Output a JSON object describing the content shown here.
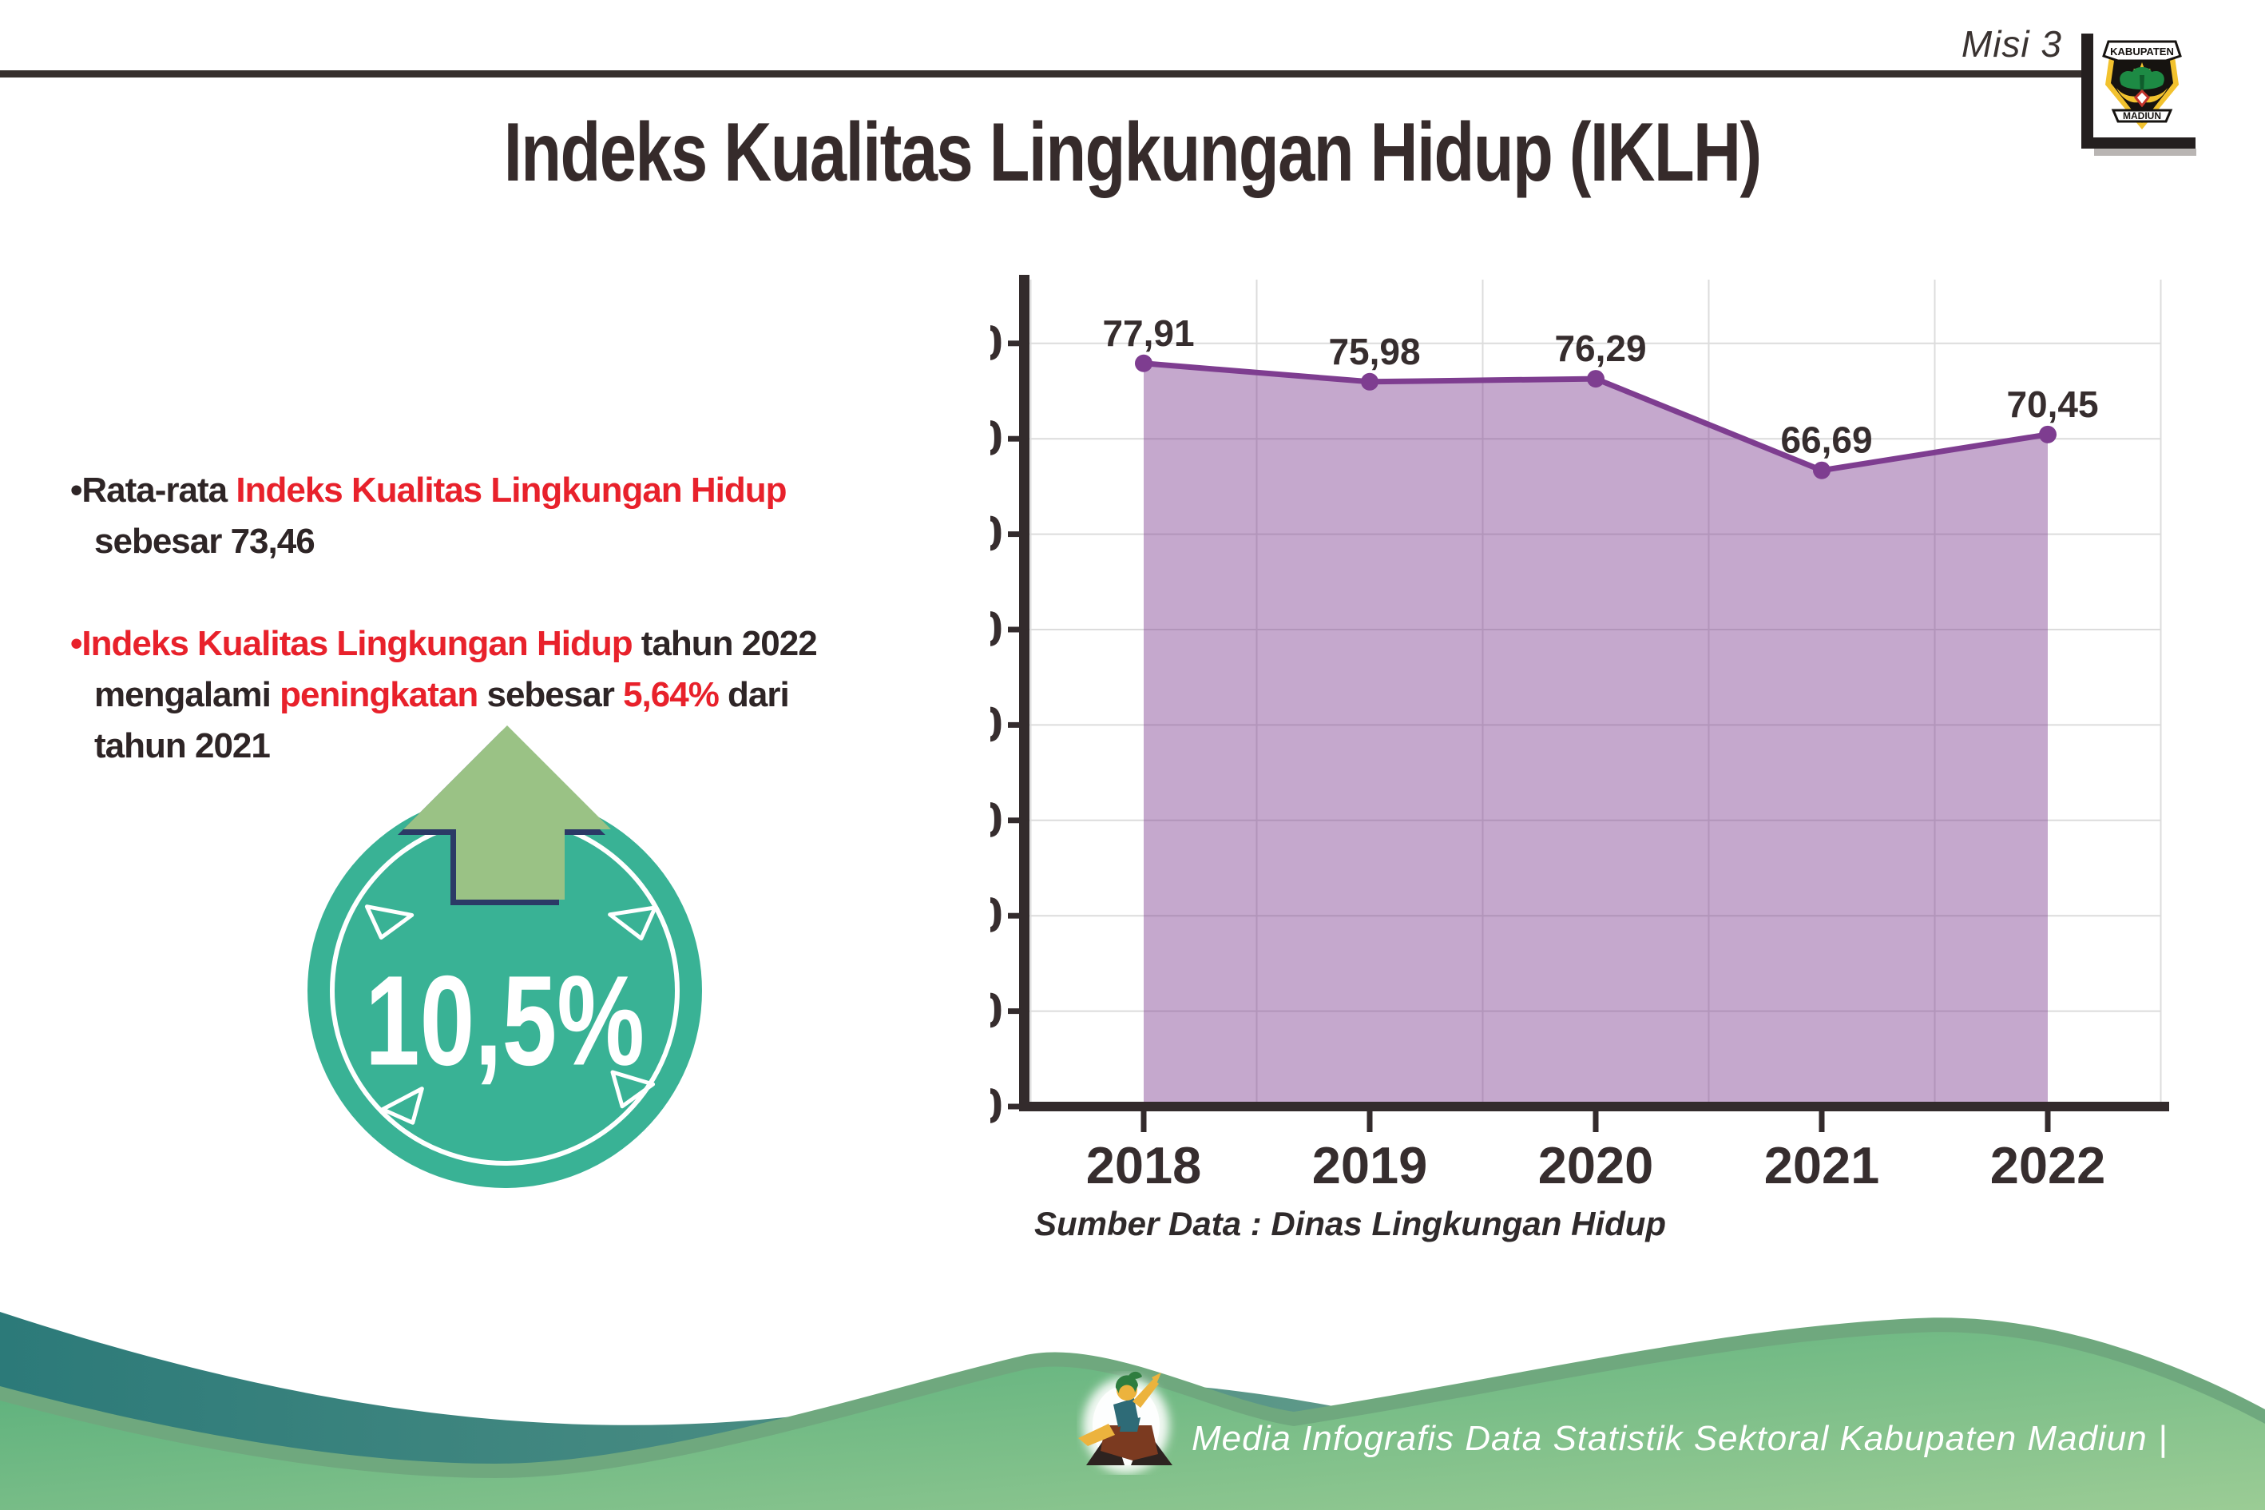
{
  "header": {
    "misi_label": "Misi 3",
    "crest_top": "KABUPATEN",
    "crest_bottom": "MADIUN"
  },
  "title": "Indeks Kualitas Lingkungan Hidup (IKLH)",
  "bullets": {
    "b1_s1": "•Rata-rata ",
    "b1_s2": "Indeks Kualitas Lingkungan Hidup",
    "b1_l2": "sebesar 73,46",
    "b2_s1": "•Indeks Kualitas Lingkungan Hidup",
    "b2_s2": " tahun 2022",
    "b2_l2_s1": "mengalami ",
    "b2_l2_s2": "peningkatan",
    "b2_l2_s3": " sebesar ",
    "b2_l2_s4": "5,64%",
    "b2_l2_s5": " dari",
    "b2_l3": "tahun 2021"
  },
  "badge": {
    "value": "10,5%",
    "circle_color": "#39b295",
    "arrow_color": "#9ac285",
    "arrow_outline": "#2b3a66"
  },
  "chart_data": {
    "type": "area",
    "categories": [
      "2018",
      "2019",
      "2020",
      "2021",
      "2022"
    ],
    "values": [
      77.91,
      75.98,
      76.29,
      66.69,
      70.45
    ],
    "value_labels": [
      "77,91",
      "75,98",
      "76,29",
      "66,69",
      "70,45"
    ],
    "title": "",
    "xlabel": "",
    "ylabel": "",
    "ylim": [
      0,
      85
    ],
    "ytick_step": 10,
    "grid": true,
    "legend": false,
    "source_note": "Sumber Data : Dinas Lingkungan Hidup",
    "colors": {
      "line": "#7e3d90",
      "marker": "#7e3d90",
      "fill": "rgba(126,61,144,0.45)",
      "axis": "#332b2c",
      "gridline": "#dcdcdc",
      "label": "#362d2e"
    }
  },
  "footer": {
    "text": "Media Infografis Data Statistik Sektoral Kabupaten Madiun |"
  },
  "colors": {
    "accent_red": "#e8212b",
    "text_dark": "#2e2526",
    "teal_wave": "#2c7a79",
    "green_wave": "#54ad79"
  }
}
